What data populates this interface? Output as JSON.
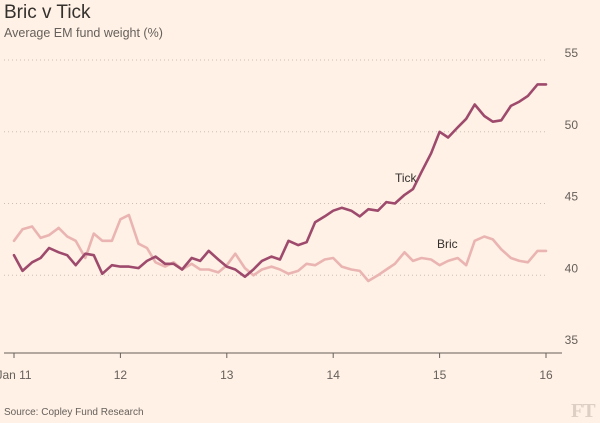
{
  "header": {
    "title": "Bric v Tick",
    "subtitle": "Average EM fund weight (%)"
  },
  "footer": {
    "source": "Source: Copley Fund Research",
    "logo": "FT"
  },
  "chart_data": {
    "type": "line",
    "title": "Bric v Tick",
    "subtitle": "Average EM fund weight (%)",
    "xlabel": "",
    "ylabel": "",
    "x_ticks": [
      "Jan 11",
      "12",
      "13",
      "14",
      "15",
      "16"
    ],
    "xlim": [
      2011.0,
      2016.0
    ],
    "ylim": [
      35,
      55
    ],
    "y_ticks": [
      35,
      40,
      45,
      50,
      55
    ],
    "grid": "horizontal dotted",
    "colors": {
      "tick": "#9e4a6d",
      "bric": "#eab4b2"
    },
    "series": [
      {
        "name": "Tick",
        "x": [
          2011.0,
          2011.08,
          2011.17,
          2011.25,
          2011.33,
          2011.42,
          2011.5,
          2011.58,
          2011.67,
          2011.75,
          2011.83,
          2011.92,
          2012.0,
          2012.08,
          2012.17,
          2012.25,
          2012.33,
          2012.42,
          2012.5,
          2012.58,
          2012.67,
          2012.75,
          2012.83,
          2012.92,
          2013.0,
          2013.08,
          2013.17,
          2013.25,
          2013.33,
          2013.42,
          2013.5,
          2013.58,
          2013.67,
          2013.75,
          2013.83,
          2013.92,
          2014.0,
          2014.08,
          2014.17,
          2014.25,
          2014.33,
          2014.42,
          2014.5,
          2014.58,
          2014.67,
          2014.75,
          2014.83,
          2014.92,
          2015.0,
          2015.08,
          2015.17,
          2015.25,
          2015.33,
          2015.42,
          2015.5,
          2015.58,
          2015.67,
          2015.75,
          2015.83,
          2015.92,
          2016.0
        ],
        "values": [
          41.4,
          40.3,
          40.9,
          41.2,
          41.9,
          41.6,
          41.4,
          40.7,
          41.5,
          41.4,
          40.1,
          40.7,
          40.6,
          40.6,
          40.5,
          41.0,
          41.3,
          40.8,
          40.8,
          40.4,
          41.2,
          41.0,
          41.7,
          41.1,
          40.6,
          40.4,
          39.9,
          40.4,
          41.0,
          41.3,
          41.1,
          42.4,
          42.1,
          42.3,
          43.7,
          44.1,
          44.5,
          44.7,
          44.5,
          44.1,
          44.6,
          44.5,
          45.1,
          45.0,
          45.6,
          46.0,
          47.2,
          48.5,
          50.0,
          49.6,
          50.3,
          50.9,
          51.9,
          51.1,
          50.7,
          50.8,
          51.8,
          52.1,
          52.5,
          53.3,
          53.3
        ]
      },
      {
        "name": "Bric",
        "x": [
          2011.0,
          2011.08,
          2011.17,
          2011.25,
          2011.33,
          2011.42,
          2011.5,
          2011.58,
          2011.67,
          2011.75,
          2011.83,
          2011.92,
          2012.0,
          2012.08,
          2012.17,
          2012.25,
          2012.33,
          2012.42,
          2012.5,
          2012.58,
          2012.67,
          2012.75,
          2012.83,
          2012.92,
          2013.0,
          2013.08,
          2013.17,
          2013.25,
          2013.33,
          2013.42,
          2013.5,
          2013.58,
          2013.67,
          2013.75,
          2013.83,
          2013.92,
          2014.0,
          2014.08,
          2014.17,
          2014.25,
          2014.33,
          2014.42,
          2014.5,
          2014.58,
          2014.67,
          2014.75,
          2014.83,
          2014.92,
          2015.0,
          2015.08,
          2015.17,
          2015.25,
          2015.33,
          2015.42,
          2015.5,
          2015.58,
          2015.67,
          2015.75,
          2015.83,
          2015.92,
          2016.0
        ],
        "values": [
          42.4,
          43.2,
          43.4,
          42.6,
          42.8,
          43.3,
          42.7,
          42.4,
          41.2,
          42.9,
          42.4,
          42.4,
          43.9,
          44.2,
          42.2,
          41.9,
          40.9,
          40.6,
          40.9,
          40.4,
          40.8,
          40.4,
          40.4,
          40.2,
          40.7,
          41.5,
          40.5,
          40.0,
          40.4,
          40.6,
          40.4,
          40.1,
          40.3,
          40.8,
          40.7,
          41.1,
          41.2,
          40.6,
          40.4,
          40.3,
          39.6,
          40.0,
          40.4,
          40.8,
          41.6,
          41.0,
          41.2,
          41.1,
          40.7,
          41.0,
          41.2,
          40.7,
          42.4,
          42.7,
          42.5,
          41.8,
          41.2,
          41.0,
          40.9,
          41.7,
          41.7
        ]
      }
    ],
    "annotations": [
      {
        "text": "Tick",
        "series": "Tick"
      },
      {
        "text": "Bric",
        "series": "Bric"
      }
    ]
  }
}
